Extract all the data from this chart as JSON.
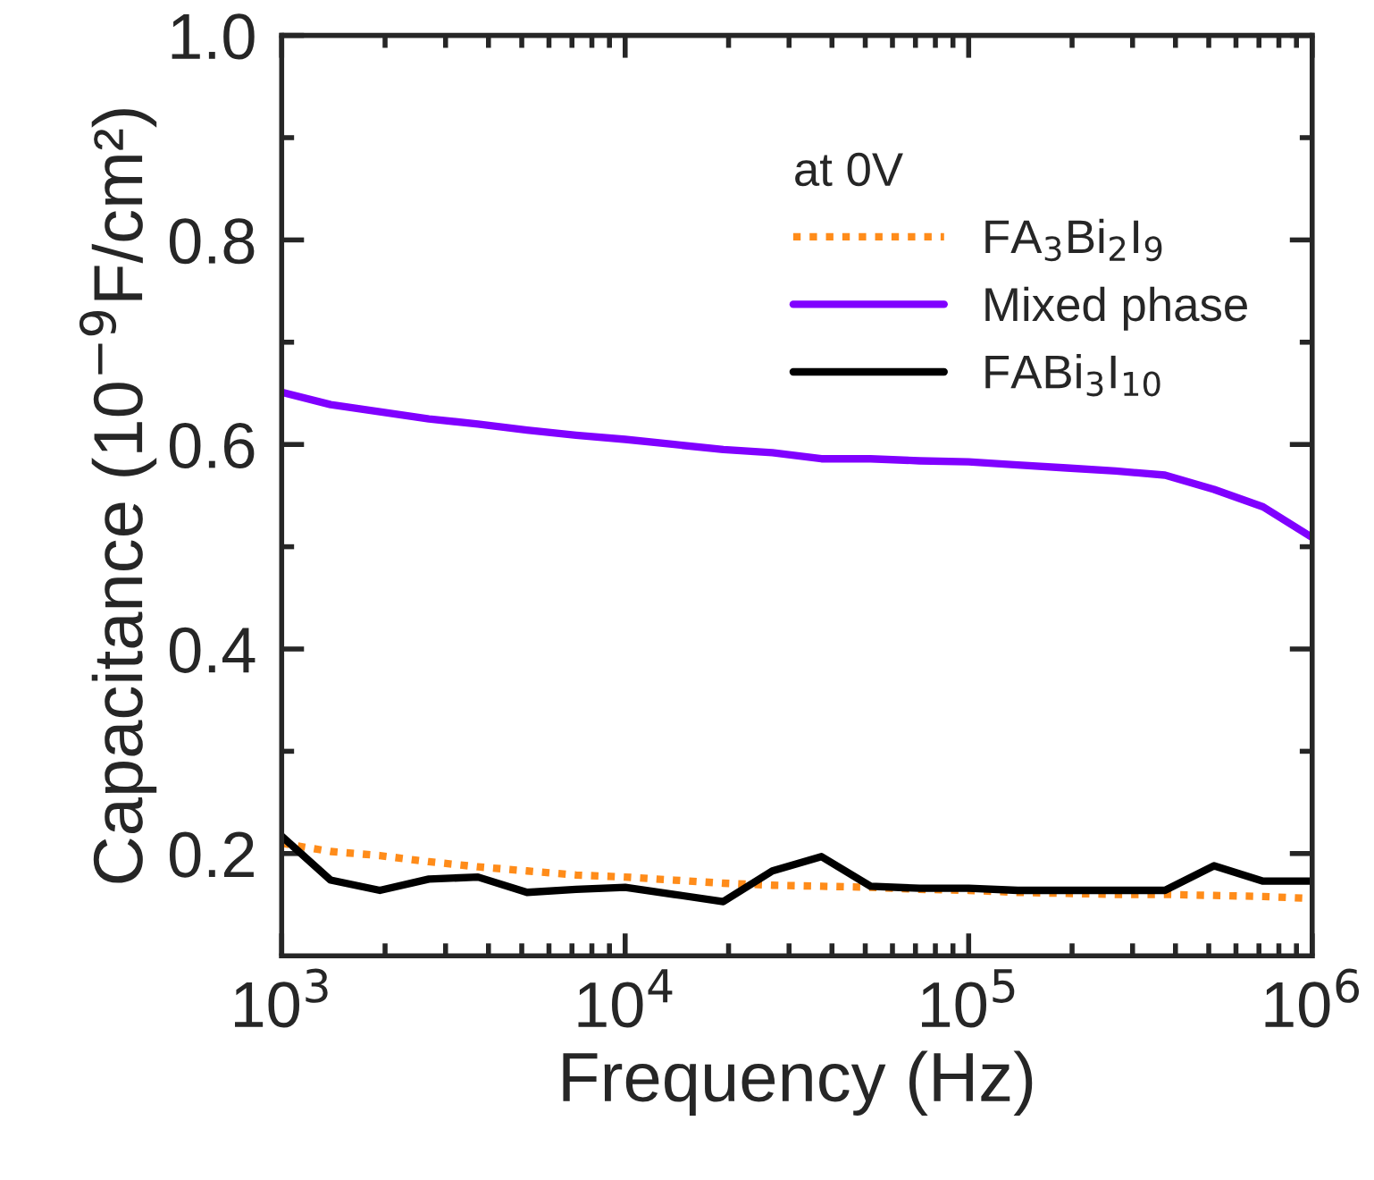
{
  "chart_data": {
    "type": "line",
    "xlabel": "Frequency (Hz)",
    "ylabel": "Capacitance (10$^{−9}$F/cm²)",
    "legend_title": "at 0V",
    "legend": "top right",
    "log": "x",
    "grid": false,
    "x": [
      1000,
      1389,
      1931,
      2683,
      3728,
      5179,
      7197,
      10000,
      13895,
      19307,
      26827,
      37276,
      51795,
      71969,
      100000,
      138950,
      193070,
      268270,
      372760,
      517950,
      719690,
      1000000
    ],
    "series": [
      {
        "name": "FA$_{3}$Bi$_{2}$I$_{9}$",
        "color": "#ff8c1a",
        "line_style": "dotted",
        "values": [
          0.21,
          0.202,
          0.198,
          0.192,
          0.187,
          0.183,
          0.179,
          0.177,
          0.174,
          0.171,
          0.169,
          0.168,
          0.167,
          0.165,
          0.164,
          0.162,
          0.161,
          0.16,
          0.16,
          0.159,
          0.158,
          0.156
        ]
      },
      {
        "name": "Mixed phase",
        "color": "#8000ff",
        "line_style": "solid",
        "values": [
          0.651,
          0.639,
          0.632,
          0.625,
          0.62,
          0.614,
          0.609,
          0.605,
          0.6,
          0.595,
          0.592,
          0.586,
          0.586,
          0.584,
          0.583,
          0.58,
          0.577,
          0.574,
          0.57,
          0.556,
          0.539,
          0.509
        ]
      },
      {
        "name": "FABi$_{3}$I$_{10}$",
        "color": "#000000",
        "line_style": "solid",
        "values": [
          0.217,
          0.174,
          0.164,
          0.175,
          0.177,
          0.162,
          0.165,
          0.167,
          0.16,
          0.153,
          0.183,
          0.197,
          0.168,
          0.166,
          0.166,
          0.164,
          0.164,
          0.164,
          0.164,
          0.188,
          0.173,
          0.173
        ]
      }
    ],
    "xlim": [
      1000,
      1000000
    ],
    "xticks": [
      {
        "value": 1000,
        "label": "10$^{3}$"
      },
      {
        "value": 2000,
        "label": null
      },
      {
        "value": 3000,
        "label": null
      },
      {
        "value": 4000,
        "label": null
      },
      {
        "value": 5000,
        "label": null
      },
      {
        "value": 6000,
        "label": null
      },
      {
        "value": 7000,
        "label": null
      },
      {
        "value": 8000,
        "label": null
      },
      {
        "value": 9000,
        "label": null
      },
      {
        "value": 10000,
        "label": "10$^{4}$"
      },
      {
        "value": 20000,
        "label": null
      },
      {
        "value": 30000,
        "label": null
      },
      {
        "value": 40000,
        "label": null
      },
      {
        "value": 50000,
        "label": null
      },
      {
        "value": 60000,
        "label": null
      },
      {
        "value": 70000,
        "label": null
      },
      {
        "value": 80000,
        "label": null
      },
      {
        "value": 90000,
        "label": null
      },
      {
        "value": 100000,
        "label": "10$^{5}$"
      },
      {
        "value": 200000,
        "label": null
      },
      {
        "value": 300000,
        "label": null
      },
      {
        "value": 400000,
        "label": null
      },
      {
        "value": 500000,
        "label": null
      },
      {
        "value": 600000,
        "label": null
      },
      {
        "value": 700000,
        "label": null
      },
      {
        "value": 800000,
        "label": null
      },
      {
        "value": 900000,
        "label": null
      },
      {
        "value": 1000000,
        "label": "10$^{6}$"
      }
    ],
    "ylim": [
      0.1,
      1.0
    ],
    "yticks": [
      {
        "value": 0.2,
        "label": "0.2"
      },
      {
        "value": 0.3,
        "label": null
      },
      {
        "value": 0.4,
        "label": "0.4"
      },
      {
        "value": 0.5,
        "label": null
      },
      {
        "value": 0.6,
        "label": "0.6"
      },
      {
        "value": 0.7,
        "label": null
      },
      {
        "value": 0.8,
        "label": "0.8"
      },
      {
        "value": 0.9,
        "label": null
      },
      {
        "value": 1.0,
        "label": "1.0"
      }
    ]
  }
}
